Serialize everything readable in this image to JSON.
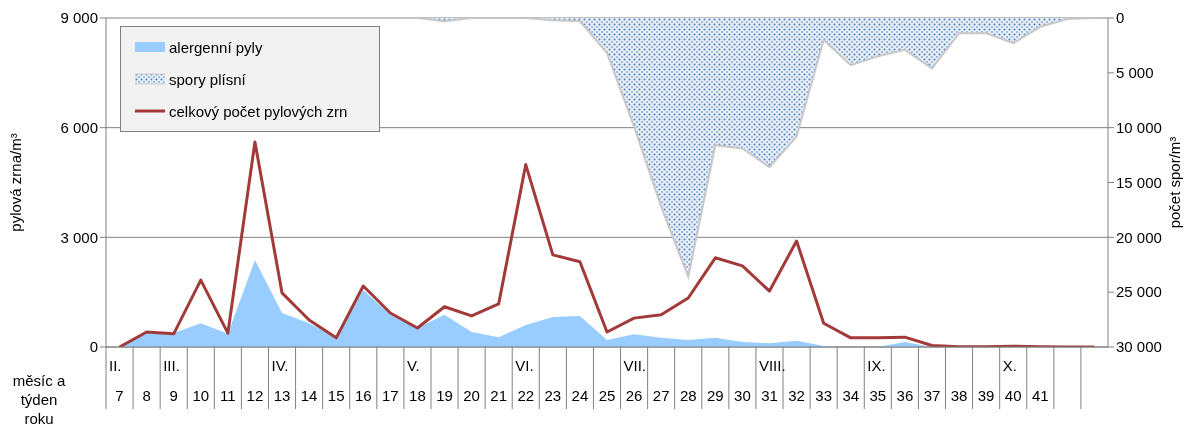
{
  "chart_data": {
    "type": "area",
    "categories": [
      "II.\n7",
      "8",
      "III.\n9",
      "10",
      "11",
      "12",
      "IV.\n13",
      "14",
      "15",
      "16",
      "17",
      "V.\n18",
      "19",
      "20",
      "21",
      "VI.\n22",
      "23",
      "24",
      "25",
      "VII.\n26",
      "27",
      "28",
      "29",
      "30",
      "VIII.\n31",
      "32",
      "33",
      "34",
      "IX.\n35",
      "36",
      "37",
      "38",
      "39",
      "X.\n40",
      "41",
      null,
      null
    ],
    "series": [
      {
        "name": "alergenní pyly",
        "type": "area",
        "color": "#99ccff",
        "values": [
          0,
          380,
          380,
          650,
          360,
          2380,
          930,
          650,
          250,
          1560,
          880,
          520,
          880,
          410,
          270,
          600,
          820,
          850,
          190,
          350,
          250,
          190,
          250,
          140,
          100,
          170,
          30,
          0,
          0,
          140,
          0,
          0,
          0,
          0,
          0,
          0,
          0
        ]
      },
      {
        "name": "spory plísní",
        "type": "area",
        "axis": "y2",
        "color": "#4a7ebb",
        "values": [
          0,
          0,
          0,
          0,
          0,
          0,
          0,
          0,
          0,
          0,
          0,
          0,
          300,
          0,
          0,
          0,
          200,
          300,
          3200,
          9900,
          17200,
          23600,
          11600,
          11900,
          13600,
          10800,
          2000,
          4300,
          3500,
          2900,
          4600,
          1400,
          1400,
          2300,
          800,
          100,
          0
        ]
      },
      {
        "name": "celkový počet pylových zrn",
        "type": "line",
        "color": "#a33a3a",
        "values": [
          0,
          410,
          360,
          1830,
          380,
          5610,
          1480,
          740,
          250,
          1670,
          930,
          520,
          1100,
          850,
          1180,
          4990,
          2520,
          2330,
          410,
          790,
          880,
          1340,
          2440,
          2220,
          1530,
          2900,
          650,
          250,
          250,
          270,
          40,
          10,
          10,
          20,
          10,
          0,
          0
        ]
      }
    ],
    "ylabel": "pylová zrna/m³",
    "y2label": "počet spor/m³",
    "ylim": [
      0,
      9000
    ],
    "yticks": [
      {
        "value": 0,
        "label": "0"
      },
      {
        "value": 3000,
        "label": "3 000"
      },
      {
        "value": 6000,
        "label": "6 000"
      },
      {
        "value": 9000,
        "label": "9 000"
      }
    ],
    "y2lim": [
      30000,
      0
    ],
    "y2ticks": [
      {
        "value": 0,
        "label": "0"
      },
      {
        "value": 5000,
        "label": "5 000"
      },
      {
        "value": 10000,
        "label": "10 000"
      },
      {
        "value": 15000,
        "label": "15 000"
      },
      {
        "value": 20000,
        "label": "20 000"
      },
      {
        "value": 25000,
        "label": "25 000"
      },
      {
        "value": 30000,
        "label": "30 000"
      }
    ],
    "grid": "y",
    "legend": "top left",
    "marker": "none",
    "annotations": [
      "měsíc a týden roku"
    ]
  }
}
